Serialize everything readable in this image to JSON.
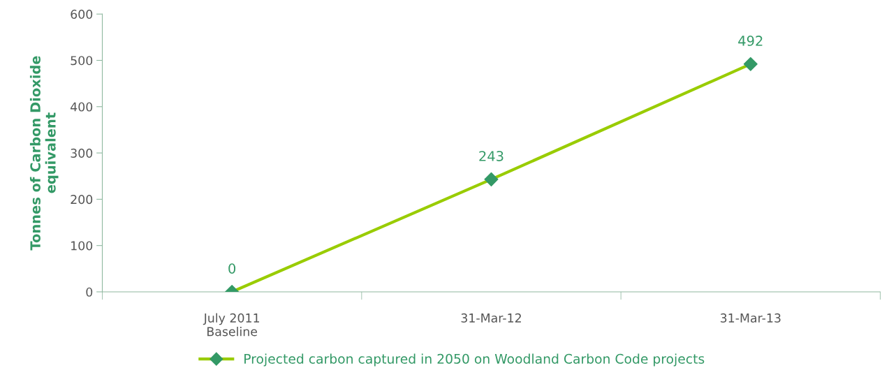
{
  "chart_data": {
    "type": "line",
    "ylabel": "Tonnes of Carbon Dioxide\nequivalent",
    "categories": [
      "July 2011\nBaseline",
      "31-Mar-12",
      "31-Mar-13"
    ],
    "series": [
      {
        "name": "Projected carbon captured in 2050 on Woodland Carbon Code projects",
        "color": "#99cc00",
        "colors": [
          "#339966",
          "#339966",
          "#339966"
        ],
        "values": [
          0,
          243,
          492
        ]
      }
    ],
    "ylim": [
      0,
      600
    ],
    "yticks": [
      0,
      100,
      200,
      300,
      400,
      500,
      600
    ],
    "data_labels": true,
    "grid": false,
    "legend": "bottom",
    "marker": "diamond",
    "line_style": "solid"
  }
}
